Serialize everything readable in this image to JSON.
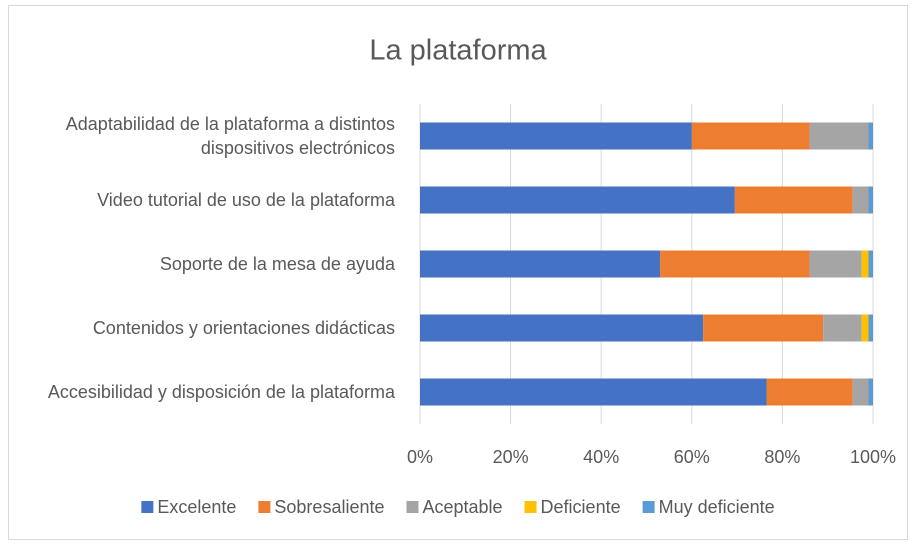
{
  "chart_data": {
    "type": "stacked-bar-horizontal",
    "title": "La plataforma",
    "categories": [
      "Adaptabilidad de la plataforma a distintos dispositivos electrónicos",
      "Video tutorial de uso de la plataforma",
      "Soporte de la mesa de ayuda",
      "Contenidos y orientaciones didácticas",
      "Accesibilidad y disposición de la plataforma"
    ],
    "series": [
      {
        "name": "Excelente",
        "color": "#4472c4",
        "values": [
          60,
          69.5,
          53,
          62.5,
          76.5
        ]
      },
      {
        "name": "Sobresaliente",
        "color": "#ed7d31",
        "values": [
          26,
          26,
          33,
          26.5,
          19
        ]
      },
      {
        "name": "Aceptable",
        "color": "#a5a5a5",
        "values": [
          13,
          3.5,
          11.5,
          8.5,
          3.5
        ]
      },
      {
        "name": "Deficiente",
        "color": "#ffc000",
        "values": [
          0,
          0,
          1.5,
          1.5,
          0
        ]
      },
      {
        "name": "Muy deficiente",
        "color": "#5b9bd5",
        "values": [
          1,
          1,
          1,
          1,
          1
        ]
      }
    ],
    "xlim": [
      0,
      100
    ],
    "xticks": [
      {
        "value": 0,
        "label": "0%"
      },
      {
        "value": 20,
        "label": "20%"
      },
      {
        "value": 40,
        "label": "40%"
      },
      {
        "value": 60,
        "label": "60%"
      },
      {
        "value": 80,
        "label": "80%"
      },
      {
        "value": 100,
        "label": "100%"
      }
    ],
    "grid": true,
    "legend": "bottom"
  }
}
